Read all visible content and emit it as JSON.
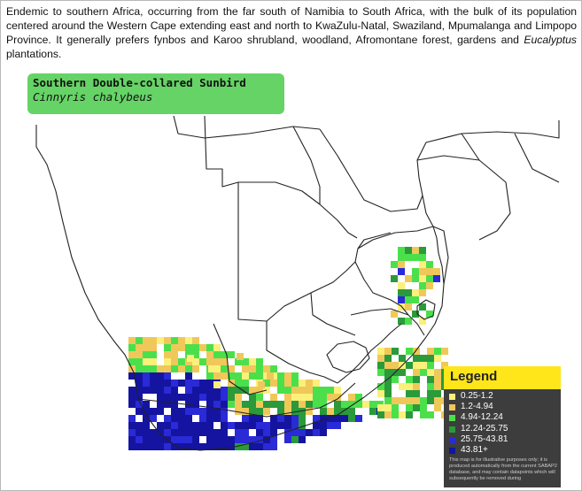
{
  "description": {
    "part1": "Endemic to southern Africa, occurring from the far south of Namibia to South Africa, with the bulk of its population centered around the Western Cape extending east and north to KwaZulu-Natal, Swaziland, Mpumalanga and Limpopo Province. It generally prefers fynbos and Karoo shrubland, woodland, Afromontane forest, gardens and ",
    "italic": "Eucalyptus",
    "part2": " plantations."
  },
  "species": {
    "common_name": "Southern Double-collared Sunbird",
    "scientific_name": "Cinnyris chalybeus"
  },
  "legend": {
    "title": "Legend",
    "items": [
      {
        "label": "0.25-1.2",
        "color": "#fbf07a"
      },
      {
        "label": "1.2-4.94",
        "color": "#f0c85a"
      },
      {
        "label": "4.94-12.24",
        "color": "#4be04b"
      },
      {
        "label": "12.24-25.75",
        "color": "#2a9a3a"
      },
      {
        "label": "25.75-43.81",
        "color": "#2a2ad6"
      },
      {
        "label": "43.81+",
        "color": "#1414a0"
      }
    ],
    "note": "This map is for illustrative purposes only; it is produced automatically from the current SABAP2 database, and may contain datapoints which will subsequently be removed during"
  },
  "colors": {
    "title_box": "#66d366",
    "legend_header": "#ffe61a",
    "legend_body": "#3d3d3d",
    "border_lines": "#222222"
  }
}
